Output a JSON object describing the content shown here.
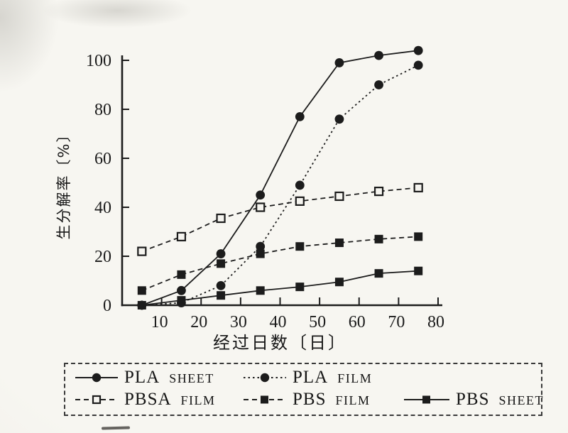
{
  "chart_data": {
    "type": "line",
    "title": "",
    "xlabel": "经过日数〔日〕",
    "ylabel": "生分解率〔%〕",
    "x": [
      5,
      15,
      25,
      35,
      45,
      55,
      65,
      75
    ],
    "x_ticks": [
      10,
      20,
      30,
      40,
      50,
      60,
      70,
      80
    ],
    "y_ticks": [
      0,
      20,
      40,
      60,
      80,
      100
    ],
    "xlim": [
      0,
      81
    ],
    "ylim": [
      0,
      105
    ],
    "grid": false,
    "legend_position": "bottom-outside-dashed-box",
    "series": [
      {
        "name": "PLA SHEET",
        "line": "solid",
        "marker": "circle-filled",
        "values": [
          0,
          6,
          21,
          45,
          77,
          99,
          102,
          104
        ]
      },
      {
        "name": "PLA FILM",
        "line": "dotted",
        "marker": "circle-filled",
        "values": [
          0,
          1,
          8,
          24,
          49,
          76,
          90,
          98
        ]
      },
      {
        "name": "PBSA FILM",
        "line": "dashed",
        "marker": "square-open",
        "values": [
          22,
          28,
          35.5,
          40,
          42.5,
          44.5,
          46.5,
          48
        ]
      },
      {
        "name": "PBS FILM",
        "line": "dashed",
        "marker": "square-filled",
        "values": [
          6,
          12.5,
          17,
          21,
          24,
          25.5,
          27,
          28
        ]
      },
      {
        "name": "PBS SHEET",
        "line": "solid",
        "marker": "square-filled",
        "values": [
          0,
          2,
          4,
          6,
          7.5,
          9.5,
          13,
          14
        ]
      }
    ]
  },
  "legend": {
    "items": [
      {
        "material": "PLA",
        "form": "SHEET"
      },
      {
        "material": "PLA",
        "form": "FILM"
      },
      {
        "material": "PBSA",
        "form": "FILM"
      },
      {
        "material": "PBS",
        "form": "FILM"
      },
      {
        "material": "PBS",
        "form": "SHEET"
      }
    ]
  },
  "colors": {
    "ink": "#1c1c1c",
    "paper": "#f5f4ef"
  }
}
